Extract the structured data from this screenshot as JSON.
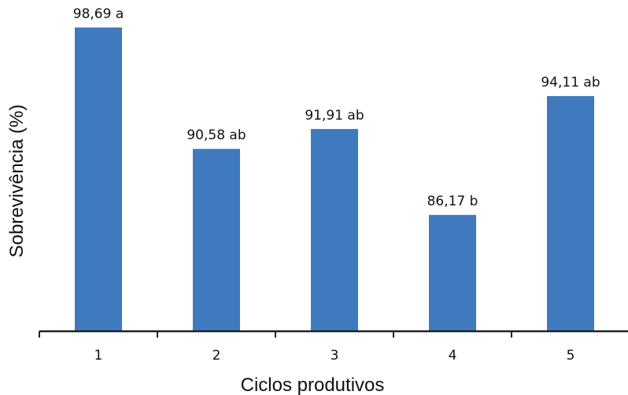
{
  "chart_data": {
    "type": "bar",
    "categories": [
      "1",
      "2",
      "3",
      "4",
      "5"
    ],
    "values": [
      98.69,
      90.58,
      91.91,
      86.17,
      94.11
    ],
    "data_labels": [
      "98,69 a",
      "90,58 ab",
      "91,91 ab",
      "86,17 b",
      "94,11 ab"
    ],
    "xlabel": "Ciclos produtivos",
    "ylabel": "Sobrevivência (%)",
    "ylim": [
      78.4,
      100
    ],
    "grid": false,
    "bar_color": "#3f7abf"
  }
}
